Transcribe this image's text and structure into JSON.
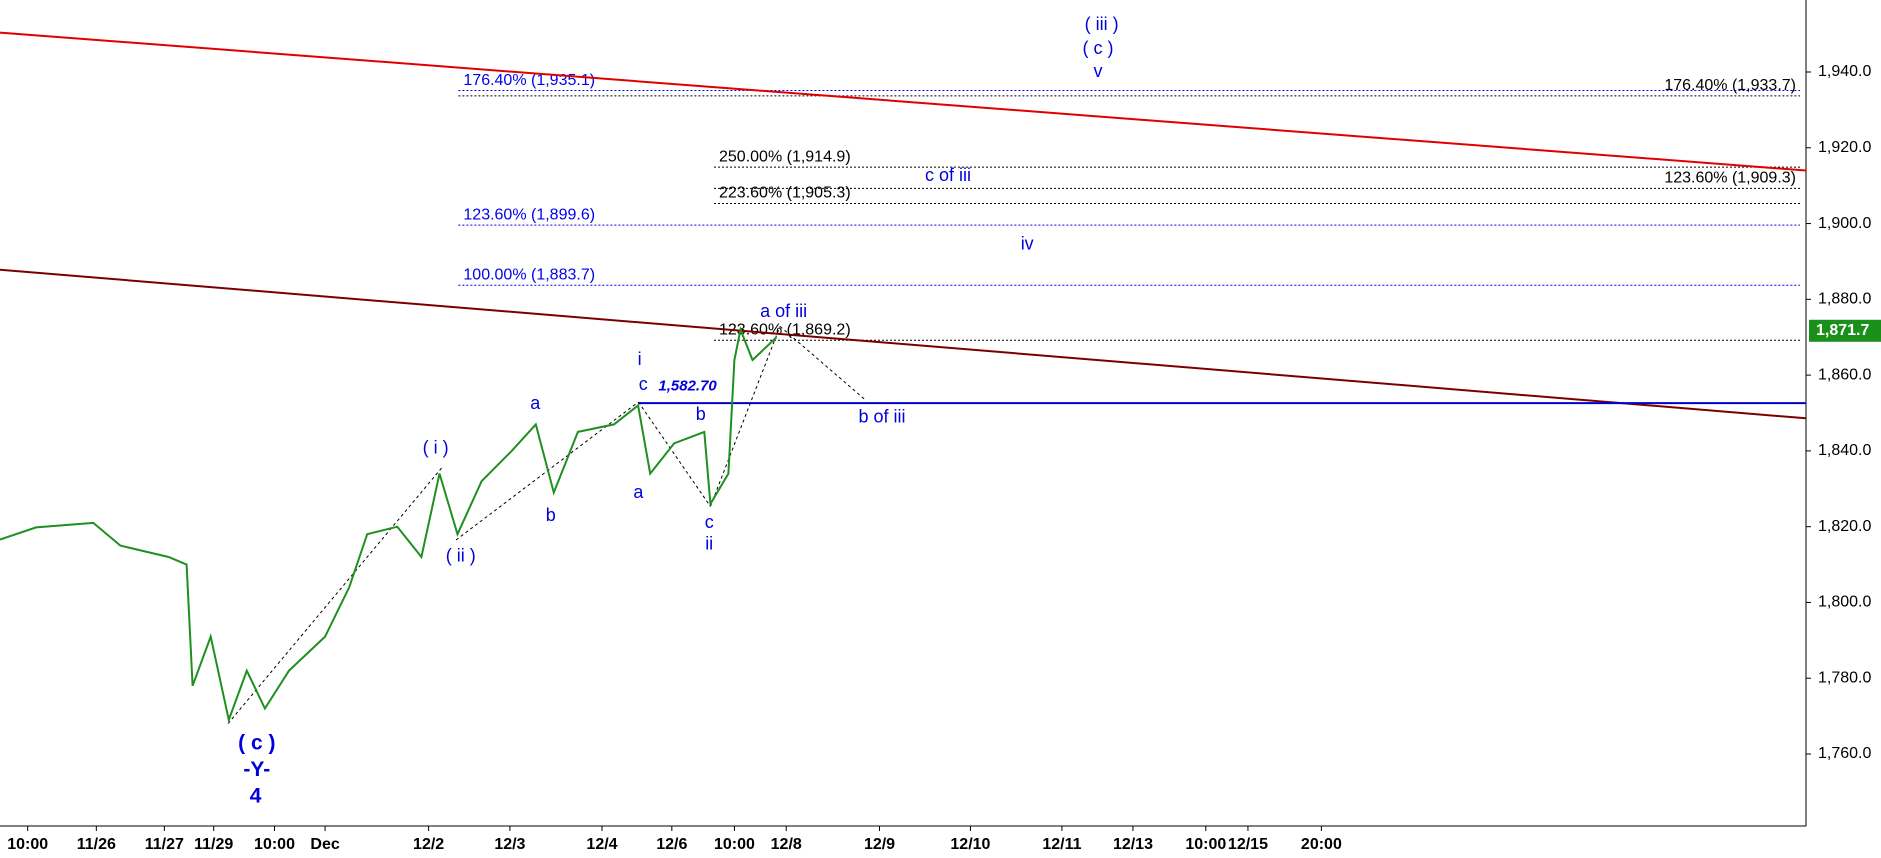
{
  "chart_data": {
    "type": "line",
    "x": [
      0,
      6,
      15.5,
      20,
      28,
      31,
      32,
      35,
      38,
      41,
      44,
      48,
      54,
      58,
      61,
      66,
      70,
      73,
      76,
      80,
      85,
      89,
      92,
      96,
      102,
      106,
      108,
      112,
      117,
      118,
      121,
      122,
      123,
      125,
      129
    ],
    "values": [
      1816.6,
      1819.8,
      1821,
      1815,
      1812,
      1810,
      1778,
      1791,
      1769,
      1782,
      1772,
      1782,
      1791,
      1804,
      1818,
      1820,
      1812,
      1834,
      1818,
      1832,
      1840,
      1847,
      1829,
      1845,
      1847,
      1852,
      1834,
      1842,
      1845,
      1826,
      1834,
      1864,
      1872,
      1864,
      1870
    ],
    "color": "#1f8f1f",
    "xlim": [
      0,
      300
    ],
    "ylim": [
      1741,
      1959
    ],
    "xticks": [
      {
        "value": 4.6,
        "label": "10:00"
      },
      {
        "value": 16,
        "label": "11/26"
      },
      {
        "value": 27.3,
        "label": "11/27"
      },
      {
        "value": 35.5,
        "label": "11/29"
      },
      {
        "value": 45.6,
        "label": "10:00"
      },
      {
        "value": 54,
        "label": "Dec"
      },
      {
        "value": 71.2,
        "label": "12/2"
      },
      {
        "value": 84.7,
        "label": "12/3"
      },
      {
        "value": 100,
        "label": "12/4"
      },
      {
        "value": 111.6,
        "label": "12/6"
      },
      {
        "value": 122,
        "label": "10:00"
      },
      {
        "value": 130.6,
        "label": "12/8"
      },
      {
        "value": 146.1,
        "label": "12/9"
      },
      {
        "value": 161.2,
        "label": "12/10"
      },
      {
        "value": 176.4,
        "label": "12/11"
      },
      {
        "value": 188.2,
        "label": "12/13"
      },
      {
        "value": 200.3,
        "label": "10:00"
      },
      {
        "value": 207.3,
        "label": "12/15"
      },
      {
        "value": 219.5,
        "label": "20:00"
      }
    ],
    "yticks": [
      {
        "value": 1760,
        "label": "1,760.0"
      },
      {
        "value": 1780,
        "label": "1,780.0"
      },
      {
        "value": 1800,
        "label": "1,800.0"
      },
      {
        "value": 1820,
        "label": "1,820.0"
      },
      {
        "value": 1840,
        "label": "1,840.0"
      },
      {
        "value": 1860,
        "label": "1,860.0"
      },
      {
        "value": 1880,
        "label": "1,880.0"
      },
      {
        "value": 1900,
        "label": "1,900.0"
      },
      {
        "value": 1920,
        "label": "1,920.0"
      },
      {
        "value": 1940,
        "label": "1,940.0"
      }
    ],
    "last_price": {
      "value": 1871.7,
      "label": "1,871.7",
      "color": "#1a8f1a"
    },
    "trendlines": [
      {
        "color": "#e00000",
        "values": [
          1950.4,
          1914
        ]
      },
      {
        "color": "#7a0000",
        "values": [
          1887.8,
          1848.6
        ]
      }
    ],
    "support": {
      "value": 1852.6,
      "x_start": 106,
      "color": "#0000cc"
    },
    "fib_levels": [
      {
        "value": 1935.1,
        "label": "176.40% (1,935.1)",
        "color": "#0000ee"
      },
      {
        "value": 1933.7,
        "label": "176.40% (1,933.7)",
        "color": "#000000"
      },
      {
        "value": 1914.9,
        "label": "250.00% (1,914.9)",
        "color": "#000000"
      },
      {
        "value": 1909.3,
        "label": "123.60% (1,909.3)",
        "color": "#000000"
      },
      {
        "value": 1905.3,
        "label": "223.60% (1,905.3)",
        "color": "#000000"
      },
      {
        "value": 1899.6,
        "label": "123.60% (1,899.6)",
        "color": "#0000ee"
      },
      {
        "value": 1883.7,
        "label": "100.00% (1,883.7)",
        "color": "#0000ee"
      },
      {
        "value": 1869.2,
        "label": "123.60% (1,869.2)",
        "color": "#000000"
      }
    ],
    "annotations": [
      {
        "text": "( iii )"
      },
      {
        "text": "( c )"
      },
      {
        "text": "v"
      },
      {
        "text": "c of iii"
      },
      {
        "text": "iv"
      },
      {
        "text": "a of iii"
      },
      {
        "text": "b of iii"
      },
      {
        "text": "i"
      },
      {
        "text": "c"
      },
      {
        "text": "1,582.70"
      },
      {
        "text": "a"
      },
      {
        "text": "b"
      },
      {
        "text": "a"
      },
      {
        "text": "b"
      },
      {
        "text": "c"
      },
      {
        "text": "ii"
      },
      {
        "text": "( i )"
      },
      {
        "text": "( ii )"
      },
      {
        "text": "( c )"
      },
      {
        "text": "-Y-"
      },
      {
        "text": "4"
      }
    ],
    "annotation_color": "#0000dd"
  }
}
